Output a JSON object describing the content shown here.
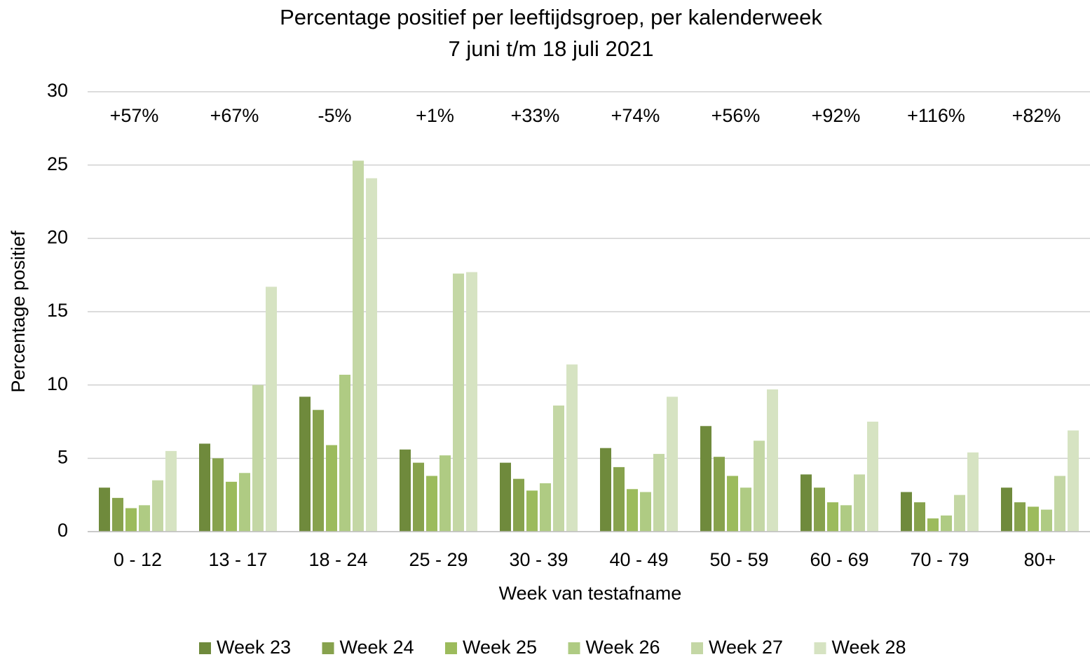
{
  "chart_data": {
    "type": "bar",
    "title": "Percentage positief per leeftijdsgroep, per kalenderweek",
    "subtitle": "7 juni t/m 18 juli 2021",
    "x_label": "Week van testafname",
    "y_label": "Percentage positief",
    "categories": [
      "0 - 12",
      "13 - 17",
      "18 - 24",
      "25 - 29",
      "30 - 39",
      "40 - 49",
      "50 - 59",
      "60 - 69",
      "70 - 79",
      "80+"
    ],
    "annotations": [
      "+57%",
      "+67%",
      "-5%",
      "+1%",
      "+33%",
      "+74%",
      "+56%",
      "+92%",
      "+116%",
      "+82%"
    ],
    "series": [
      {
        "name": "Week 23",
        "color": "#6f8a3c",
        "values": [
          3.0,
          6.0,
          9.2,
          5.6,
          4.7,
          5.7,
          7.2,
          3.9,
          2.7,
          3.0
        ]
      },
      {
        "name": "Week 24",
        "color": "#87a24d",
        "values": [
          2.3,
          5.0,
          8.3,
          4.7,
          3.6,
          4.4,
          5.1,
          3.0,
          2.0,
          2.0
        ]
      },
      {
        "name": "Week 25",
        "color": "#9cbb5c",
        "values": [
          1.6,
          3.4,
          5.9,
          3.8,
          2.8,
          2.9,
          3.8,
          2.0,
          0.9,
          1.7
        ]
      },
      {
        "name": "Week 26",
        "color": "#afcb83",
        "values": [
          1.8,
          4.0,
          10.7,
          5.2,
          3.3,
          2.7,
          3.0,
          1.8,
          1.1,
          1.5
        ]
      },
      {
        "name": "Week 27",
        "color": "#c4d7a5",
        "values": [
          3.5,
          10.0,
          25.3,
          17.6,
          8.6,
          5.3,
          6.2,
          3.9,
          2.5,
          3.8
        ]
      },
      {
        "name": "Week 28",
        "color": "#d6e3c2",
        "values": [
          5.5,
          16.7,
          24.1,
          17.7,
          11.4,
          9.2,
          9.7,
          7.5,
          5.4,
          6.9
        ]
      }
    ],
    "ylim": [
      0,
      30
    ],
    "yticks": [
      0,
      5,
      10,
      15,
      20,
      25,
      30
    ],
    "grid": true,
    "legend": "bottom"
  }
}
